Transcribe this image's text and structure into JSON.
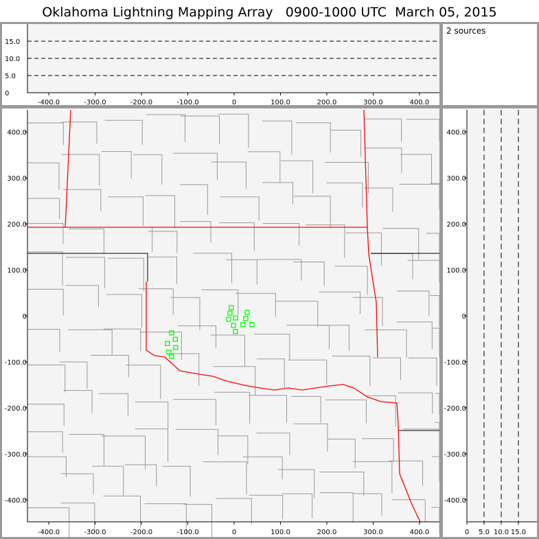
{
  "title": "Oklahoma Lightning Mapping Array   0900-1000 UTC  March 05, 2015",
  "sources_label": "2 sources",
  "colors": {
    "source_marker": "#00ff00",
    "state_border": "#ff0000",
    "county_border": "#999999",
    "plot_bg": "#f4f4f4"
  },
  "chart_data": [
    {
      "type": "scatter",
      "panel": "plan-view",
      "xlim": [
        -446,
        443
      ],
      "ylim": [
        -448,
        448
      ],
      "xticks": [
        "-400.0",
        "-300.0",
        "-200.0",
        "-100.0",
        "0",
        "100.0",
        "200.0",
        "300.0",
        "400.0"
      ],
      "xtick_values": [
        -400,
        -300,
        -200,
        -100,
        0,
        100,
        200,
        300,
        400
      ],
      "yticks": [
        "400.0",
        "300.0",
        "200.0",
        "100.0",
        "0",
        "-100.0",
        "-200.0",
        "-300.0",
        "-400.0"
      ],
      "ytick_values": [
        400,
        300,
        200,
        100,
        0,
        -100,
        -200,
        -300,
        -400
      ],
      "points": [
        [
          -6,
          18
        ],
        [
          -9,
          6
        ],
        [
          -12,
          -7.5
        ],
        [
          3,
          -4.5
        ],
        [
          28,
          7.5
        ],
        [
          25,
          -6
        ],
        [
          -1.5,
          -21
        ],
        [
          19,
          -19
        ],
        [
          38.5,
          -19
        ],
        [
          3,
          -34
        ],
        [
          -135,
          -37
        ],
        [
          -127,
          -51
        ],
        [
          -144,
          -60
        ],
        [
          -126,
          -69
        ],
        [
          -141,
          -79
        ],
        [
          -135,
          -88
        ]
      ]
    },
    {
      "type": "scatter",
      "panel": "east-west vs altitude",
      "xlim": [
        -446,
        443
      ],
      "ylim": [
        0,
        20
      ],
      "xticks": [
        "-400.0",
        "-300.0",
        "-200.0",
        "-100.0",
        "0",
        "100.0",
        "200.0",
        "300.0",
        "400.0"
      ],
      "xtick_values": [
        -400,
        -300,
        -200,
        -100,
        0,
        100,
        200,
        300,
        400
      ],
      "yticks": [
        "15.0",
        "10.0",
        "5.0",
        "0"
      ],
      "ytick_values": [
        15,
        10,
        5,
        0
      ],
      "gridlines": [
        5,
        10,
        15
      ],
      "points": []
    },
    {
      "type": "scatter",
      "panel": "altitude vs north-south",
      "xlim": [
        0,
        20.4
      ],
      "ylim": [
        -448,
        448
      ],
      "xticks": [
        "0",
        "5.0",
        "10.0",
        "15.0"
      ],
      "xtick_values": [
        0,
        5,
        10,
        15
      ],
      "yticks": [
        "400.0",
        "300.0",
        "200.0",
        "100.0",
        "0",
        "-100.0",
        "-200.0",
        "-300.0",
        "-400.0"
      ],
      "ytick_values": [
        400,
        300,
        200,
        100,
        0,
        -100,
        -200,
        -300,
        -400
      ],
      "gridlines": [
        5,
        10,
        15
      ],
      "points": []
    }
  ]
}
